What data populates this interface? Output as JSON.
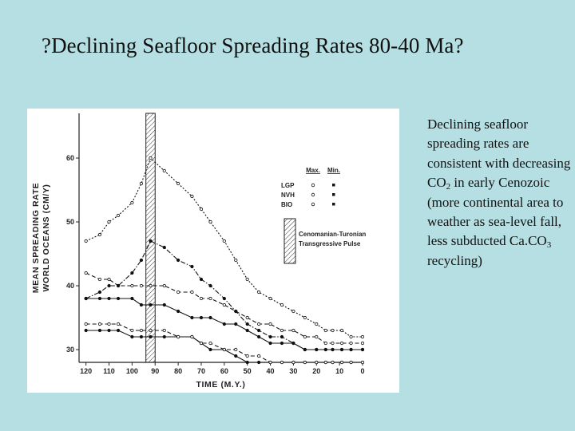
{
  "slide": {
    "title": "?Declining Seafloor Spreading Rates 80-40 Ma?",
    "description_parts": [
      "Declining seafloor spreading rates are consistent with decreasing CO",
      "2",
      " in early Cenozoic (more continental area to weather as sea-level fall, less subducted Ca.CO",
      "3",
      " recycling)"
    ]
  },
  "chart_data": {
    "type": "line",
    "xlabel": "TIME (M.Y.)",
    "ylabel_lines": [
      "MEAN SPREADING RATE",
      "WORLD OCEANS (CM/Y)"
    ],
    "x_ticks": [
      120,
      110,
      100,
      90,
      80,
      70,
      60,
      50,
      40,
      30,
      20,
      10,
      0
    ],
    "y_ticks": [
      30,
      40,
      50,
      60
    ],
    "xlim": [
      123,
      0
    ],
    "ylim": [
      28,
      67
    ],
    "shaded_band": {
      "x_from": 94,
      "x_to": 90,
      "label_lines": [
        "Cenomanian-Turonian",
        "Transgressive Pulse"
      ]
    },
    "legend": {
      "position": "right",
      "columns": [
        "Max.",
        "Min."
      ],
      "rows": [
        "LGP",
        "NVH",
        "BIO"
      ]
    },
    "series": [
      {
        "name": "LGP Max.",
        "style": "solid",
        "x": [
          120,
          114,
          110,
          106,
          100,
          96,
          92,
          86,
          80,
          74,
          70,
          66,
          60,
          55,
          50,
          45,
          40,
          35,
          30,
          25,
          20,
          16,
          13,
          9,
          5,
          0
        ],
        "values": [
          38,
          38,
          38,
          38,
          38,
          37,
          37,
          37,
          36,
          35,
          35,
          35,
          34,
          34,
          33,
          32,
          31,
          31,
          31,
          30,
          30,
          30,
          30,
          30,
          30,
          30
        ]
      },
      {
        "name": "LGP Min.",
        "style": "solid",
        "x": [
          120,
          114,
          110,
          106,
          100,
          96,
          92,
          86,
          80,
          74,
          70,
          66,
          60,
          55,
          50,
          45,
          40,
          35,
          30,
          25,
          20,
          16,
          13,
          9,
          5,
          0
        ],
        "values": [
          33,
          33,
          33,
          33,
          32,
          32,
          32,
          32,
          32,
          32,
          31,
          30,
          30,
          29,
          28,
          28,
          28,
          28,
          28,
          28,
          28,
          28,
          28,
          28,
          28,
          28
        ]
      },
      {
        "name": "NVH Max.",
        "style": "dashed",
        "x": [
          120,
          114,
          110,
          106,
          100,
          96,
          92,
          86,
          80,
          74,
          70,
          66,
          60,
          55,
          50,
          45,
          40,
          35,
          30,
          25,
          20,
          16,
          13,
          9,
          5,
          0
        ],
        "values": [
          42,
          41,
          41,
          40,
          40,
          40,
          40,
          40,
          39,
          39,
          38,
          38,
          37,
          36,
          35,
          34,
          34,
          33,
          33,
          32,
          32,
          31,
          31,
          31,
          31,
          31
        ]
      },
      {
        "name": "NVH Min.",
        "style": "dashed",
        "x": [
          120,
          114,
          110,
          106,
          100,
          96,
          92,
          86,
          80,
          74,
          70,
          66,
          60,
          55,
          50,
          45,
          40,
          35,
          30,
          25,
          20,
          16,
          13,
          9,
          5,
          0
        ],
        "values": [
          34,
          34,
          34,
          34,
          33,
          33,
          33,
          33,
          32,
          32,
          31,
          31,
          30,
          30,
          29,
          29,
          28,
          28,
          28,
          28,
          28,
          28,
          28,
          28,
          28,
          28
        ]
      },
      {
        "name": "BIO Max.",
        "style": "dotted",
        "x": [
          120,
          114,
          110,
          106,
          100,
          96,
          92,
          86,
          80,
          74,
          70,
          66,
          60,
          55,
          50,
          45,
          40,
          35,
          30,
          25,
          20,
          16,
          13,
          9,
          5,
          0
        ],
        "values": [
          47,
          48,
          50,
          51,
          53,
          56,
          60,
          58,
          56,
          54,
          52,
          50,
          47,
          44,
          41,
          39,
          38,
          37,
          36,
          35,
          34,
          33,
          33,
          33,
          32,
          32
        ]
      },
      {
        "name": "BIO Min.",
        "style": "dash-dot",
        "x": [
          120,
          114,
          110,
          106,
          100,
          96,
          92,
          86,
          80,
          74,
          70,
          66,
          60,
          55,
          50,
          45,
          40,
          35,
          30,
          25,
          20,
          16,
          13,
          9,
          5,
          0
        ],
        "values": [
          38,
          39,
          40,
          40,
          42,
          44,
          47,
          46,
          44,
          43,
          41,
          40,
          38,
          36,
          34,
          33,
          32,
          32,
          31,
          30,
          30,
          30,
          30,
          30,
          30,
          30
        ]
      }
    ]
  }
}
